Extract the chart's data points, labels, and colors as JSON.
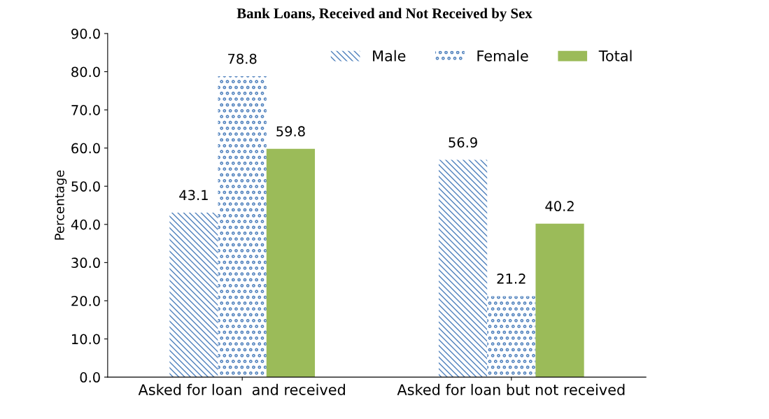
{
  "chart_data": {
    "type": "bar",
    "title": "Bank Loans, Received and Not Received by Sex",
    "ylabel": "Percentage",
    "categories": [
      "Asked for loan  and received",
      "Asked for loan but not received"
    ],
    "series": [
      {
        "name": "Male",
        "color": "#4f81bd",
        "values": [
          43.1,
          56.9
        ]
      },
      {
        "name": "Female",
        "color": "#4f81bd",
        "values": [
          78.8,
          21.2
        ]
      },
      {
        "name": "Total",
        "color": "#9bbb59",
        "values": [
          59.8,
          40.2
        ]
      }
    ],
    "ylim": [
      0,
      90
    ],
    "yticks": [
      {
        "value": 0,
        "label": "0.0"
      },
      {
        "value": 10,
        "label": "10.0"
      },
      {
        "value": 20,
        "label": "20.0"
      },
      {
        "value": 30,
        "label": "30.0"
      },
      {
        "value": 40,
        "label": "40.0"
      },
      {
        "value": 50,
        "label": "50.0"
      },
      {
        "value": 60,
        "label": "60.0"
      },
      {
        "value": 70,
        "label": "70.0"
      },
      {
        "value": 80,
        "label": "80.0"
      },
      {
        "value": 90,
        "label": "90.0"
      }
    ],
    "data_labels": true,
    "legend": "top right",
    "grid": false
  }
}
